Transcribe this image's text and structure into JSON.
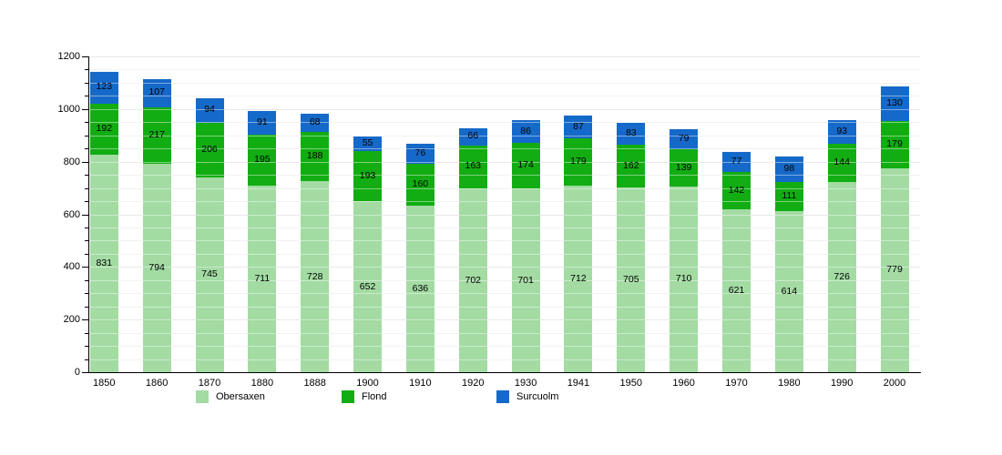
{
  "chart_data": {
    "type": "bar",
    "stacked": true,
    "title": "",
    "categories": [
      "1850",
      "1860",
      "1870",
      "1880",
      "1888",
      "1900",
      "1910",
      "1920",
      "1930",
      "1941",
      "1950",
      "1960",
      "1970",
      "1980",
      "1990",
      "2000"
    ],
    "series": [
      {
        "name": "Obersaxen",
        "color": "#a3dba3",
        "values": [
          831,
          794,
          745,
          711,
          728,
          652,
          636,
          702,
          701,
          712,
          705,
          710,
          621,
          614,
          726,
          779
        ]
      },
      {
        "name": "Flond",
        "color": "#12ad12",
        "values": [
          192,
          217,
          206,
          195,
          188,
          193,
          160,
          163,
          174,
          179,
          162,
          139,
          142,
          111,
          144,
          179
        ]
      },
      {
        "name": "Surcuolm",
        "color": "#1569c9",
        "values": [
          123,
          107,
          94,
          91,
          68,
          55,
          76,
          66,
          86,
          87,
          83,
          79,
          77,
          98,
          93,
          130
        ]
      }
    ],
    "ylim": [
      0,
      1200
    ],
    "y_major_step": 200,
    "y_minor_step": 50,
    "y_tick_labels": [
      "0",
      "200",
      "400",
      "600",
      "800",
      "1000",
      "1200"
    ],
    "grid": true,
    "grid_minor_color": "#e8e8e8",
    "grid_major_color": "#d8d8d8",
    "axis_color": "#000000",
    "value_labels": "centered-in-segment",
    "legend_position": "bottom",
    "legend_labels": [
      "Obersaxen",
      "Flond",
      "Surcuolm"
    ]
  }
}
